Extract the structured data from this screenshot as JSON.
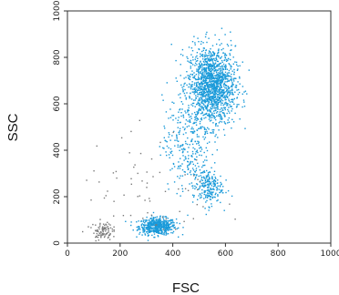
{
  "chart_data": {
    "type": "scatter",
    "title": "",
    "xlabel": "FSC",
    "ylabel": "SSC",
    "xlim": [
      0,
      1000
    ],
    "ylim": [
      0,
      1000
    ],
    "xticks": [
      0,
      200,
      400,
      600,
      800,
      1000
    ],
    "yticks": [
      0,
      200,
      400,
      600,
      800,
      1000
    ],
    "xtick_labels": [
      "0",
      "200",
      "400",
      "600",
      "800",
      "1000"
    ],
    "ytick_labels": [
      "0",
      "200",
      "400",
      "600",
      "800",
      "1000"
    ],
    "grid": false,
    "legend": "none",
    "series": [
      {
        "color": "#1a9ad9",
        "clusters": [
          {
            "center": [
              340,
              75
            ],
            "spread": [
              35,
              18
            ],
            "points": 520
          },
          {
            "center": [
              545,
              680
            ],
            "spread": [
              45,
              85
            ],
            "points": 1500
          },
          {
            "center": [
              530,
              245
            ],
            "spread": [
              28,
              40
            ],
            "points": 220
          },
          {
            "center": [
              450,
              430
            ],
            "spread": [
              45,
              100
            ],
            "points": 260
          }
        ]
      },
      {
        "color": "#7a7a7a",
        "clusters": [
          {
            "center": [
              130,
              55
            ],
            "spread": [
              18,
              20
            ],
            "points": 90
          },
          {
            "center": [
              300,
              200
            ],
            "spread": [
              130,
              160
            ],
            "points": 80
          }
        ]
      }
    ]
  }
}
